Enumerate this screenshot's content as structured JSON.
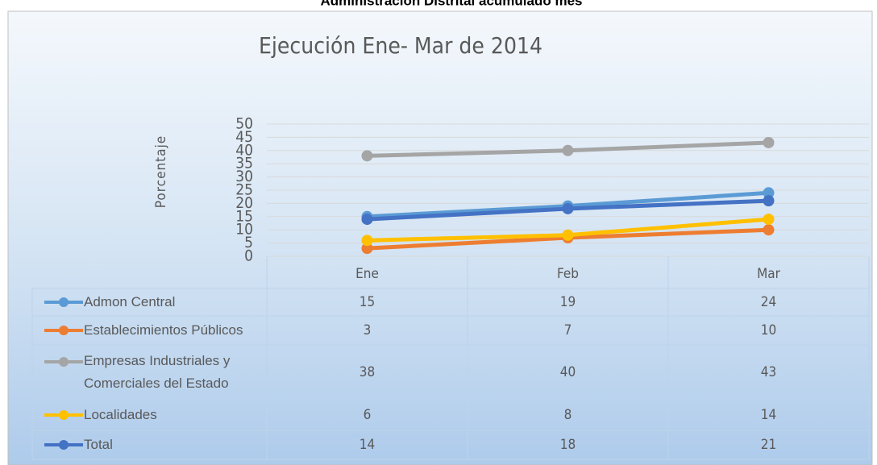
{
  "chart_data": {
    "type": "line",
    "header": "Administración Distrital acumulado mes",
    "title": "Ejecución Ene- Mar de 2014",
    "y_label": "Porcentaje",
    "categories": [
      "Ene",
      "Feb",
      "Mar"
    ],
    "ylim": [
      0,
      50
    ],
    "yticks": [
      0,
      5,
      10,
      15,
      20,
      25,
      30,
      35,
      40,
      45,
      50
    ],
    "grid": true,
    "series": [
      {
        "name": "Admon Central",
        "color": "#5b9bd5",
        "values": [
          15,
          19,
          24
        ]
      },
      {
        "name": "Establecimientos Públicos",
        "color": "#ed7d31",
        "values": [
          3,
          7,
          10
        ]
      },
      {
        "name": "Empresas Industriales y Comerciales del Estado",
        "color": "#a5a5a5",
        "values": [
          38,
          40,
          43
        ]
      },
      {
        "name": "Localidades",
        "color": "#ffc000",
        "values": [
          6,
          8,
          14
        ]
      },
      {
        "name": "Total",
        "color": "#4472c4",
        "values": [
          14,
          18,
          21
        ]
      }
    ]
  }
}
